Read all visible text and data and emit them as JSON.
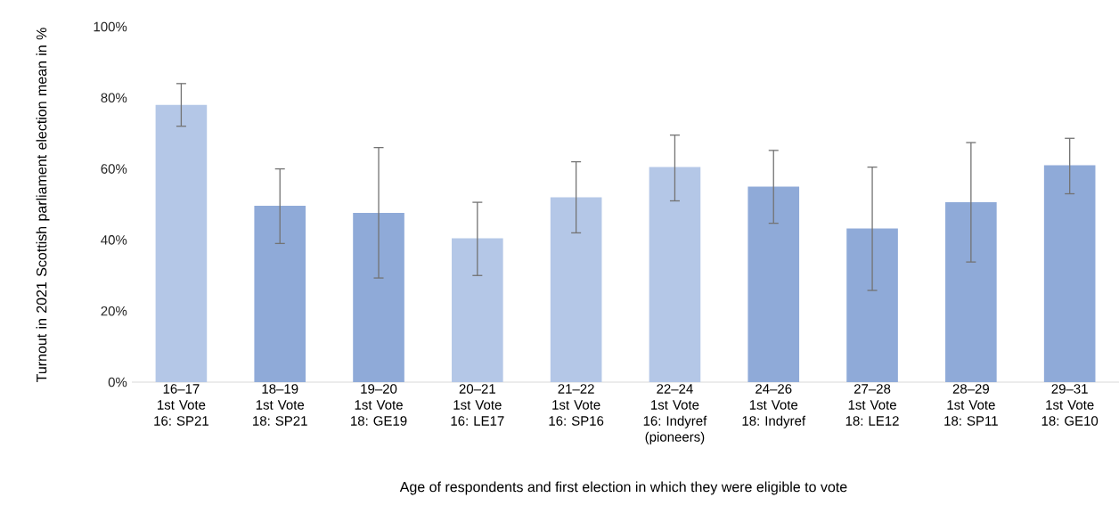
{
  "chart_data": {
    "type": "bar",
    "xlabel": "Age of respondents and first election in which they were eligible to vote",
    "ylabel": "Turnout in 2021 Scottish parliament election mean in %",
    "categories": [
      "16–17\n1st Vote\n16: SP21",
      "18–19\n1st Vote\n18: SP21",
      "19–20\n1st Vote\n18: GE19",
      "20–21\n1st Vote\n16: LE17",
      "21–22\n1st Vote\n16: SP16",
      "22–24\n1st Vote\n16: Indyref\n(pioneers)",
      "24–26\n1st Vote\n18: Indyref",
      "27–28\n1st Vote\n18: LE12",
      "28–29\n1st Vote\n18: SP11",
      "29–31\n1st Vote\n18: GE10"
    ],
    "values": [
      78,
      49.6,
      47.6,
      40.5,
      52,
      60.5,
      55,
      43.2,
      50.6,
      61
    ],
    "errors": [
      [
        72,
        84
      ],
      [
        39,
        60
      ],
      [
        29.3,
        66
      ],
      [
        30,
        50.6
      ],
      [
        42,
        62
      ],
      [
        51,
        69.5
      ],
      [
        44.7,
        65.2
      ],
      [
        25.8,
        60.5
      ],
      [
        33.8,
        67.4
      ],
      [
        53,
        68.6
      ]
    ],
    "colors": [
      "#b4c7e7",
      "#8faad8",
      "#8faad8",
      "#b4c7e7",
      "#b4c7e7",
      "#b4c7e7",
      "#8faad8",
      "#8faad8",
      "#8faad8",
      "#8faad8"
    ],
    "ylim": [
      0,
      100
    ],
    "yticks": [
      {
        "value": 0,
        "label": "0%"
      },
      {
        "value": 20,
        "label": "20%"
      },
      {
        "value": 40,
        "label": "40%"
      },
      {
        "value": 60,
        "label": "60%"
      },
      {
        "value": 80,
        "label": "80%"
      },
      {
        "value": 100,
        "label": "100%"
      }
    ],
    "grid": false
  }
}
